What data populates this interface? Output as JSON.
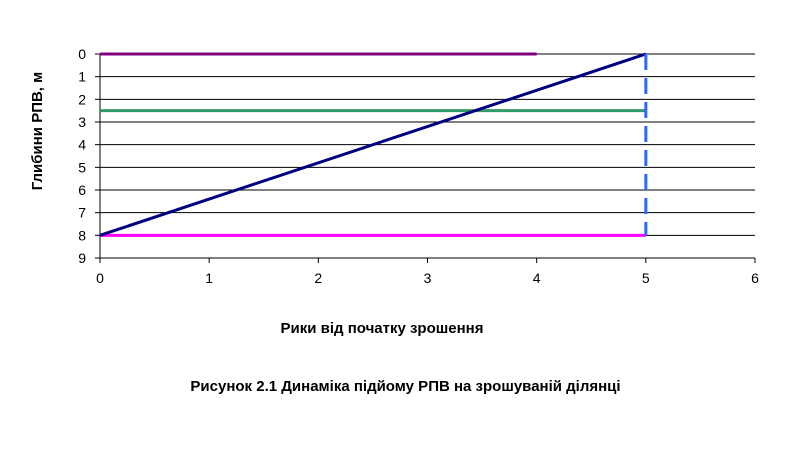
{
  "chart_data": {
    "type": "line",
    "title": "",
    "xlabel": "Рики від початку зрошення",
    "ylabel": "Глибини РПВ, м",
    "xlim": [
      0,
      6
    ],
    "ylim": [
      0,
      9
    ],
    "y_inverted": true,
    "x_ticks": [
      "0",
      "1",
      "2",
      "3",
      "4",
      "5",
      "6"
    ],
    "y_ticks": [
      "0",
      "1",
      "2",
      "3",
      "4",
      "5",
      "6",
      "7",
      "8",
      "9"
    ],
    "grid": "horizontal",
    "legend": "none",
    "series": [
      {
        "points": [
          [
            0,
            0
          ],
          [
            4,
            0
          ]
        ],
        "color": "#800080",
        "style": "solid"
      },
      {
        "points": [
          [
            0,
            2.5
          ],
          [
            5,
            2.5
          ]
        ],
        "color": "#339966",
        "style": "solid"
      },
      {
        "points": [
          [
            0,
            8
          ],
          [
            5,
            8
          ]
        ],
        "color": "#ff00ff",
        "style": "solid"
      },
      {
        "points": [
          [
            0,
            8
          ],
          [
            5,
            0
          ]
        ],
        "color": "#000080",
        "style": "solid"
      },
      {
        "points": [
          [
            5,
            0
          ],
          [
            5,
            8
          ]
        ],
        "color": "#3366ff",
        "style": "dashed"
      }
    ]
  },
  "caption": "Рисунок 2.1 Динаміка підйому РПВ на зрошуваній ділянці"
}
